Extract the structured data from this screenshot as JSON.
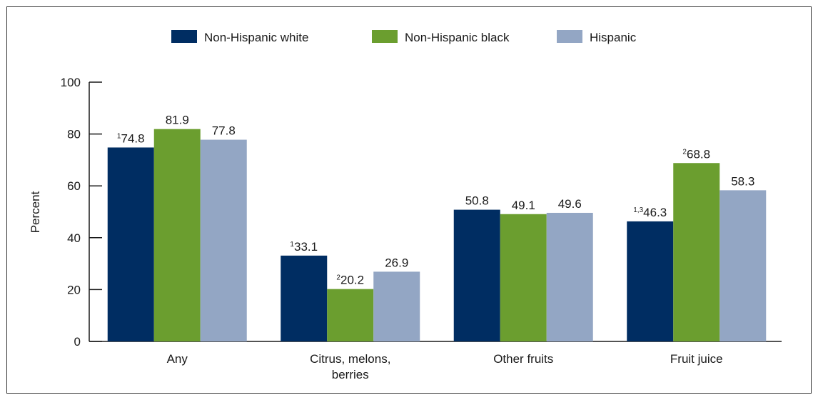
{
  "chart_data": {
    "type": "bar",
    "title": "",
    "xlabel": "",
    "ylabel": "Percent",
    "ylim": [
      0,
      100
    ],
    "yticks": [
      0,
      20,
      40,
      60,
      80,
      100
    ],
    "grid": false,
    "legend_position": "top",
    "categories": [
      [
        "Any"
      ],
      [
        "Citrus, melons,",
        "berries"
      ],
      [
        "Other fruits"
      ],
      [
        "Fruit juice"
      ]
    ],
    "series": [
      {
        "name": "Non-Hispanic white",
        "color": "#002d62",
        "values": [
          74.8,
          33.1,
          50.8,
          46.3
        ],
        "superscripts": [
          "1",
          "1",
          "",
          "1,3"
        ]
      },
      {
        "name": "Non-Hispanic black",
        "color": "#6b9e2f",
        "values": [
          81.9,
          20.2,
          49.1,
          68.8
        ],
        "superscripts": [
          "",
          "2",
          "",
          "2"
        ]
      },
      {
        "name": "Hispanic",
        "color": "#93a6c4",
        "values": [
          77.8,
          26.9,
          49.6,
          58.3
        ],
        "superscripts": [
          "",
          "",
          "",
          ""
        ]
      }
    ]
  }
}
